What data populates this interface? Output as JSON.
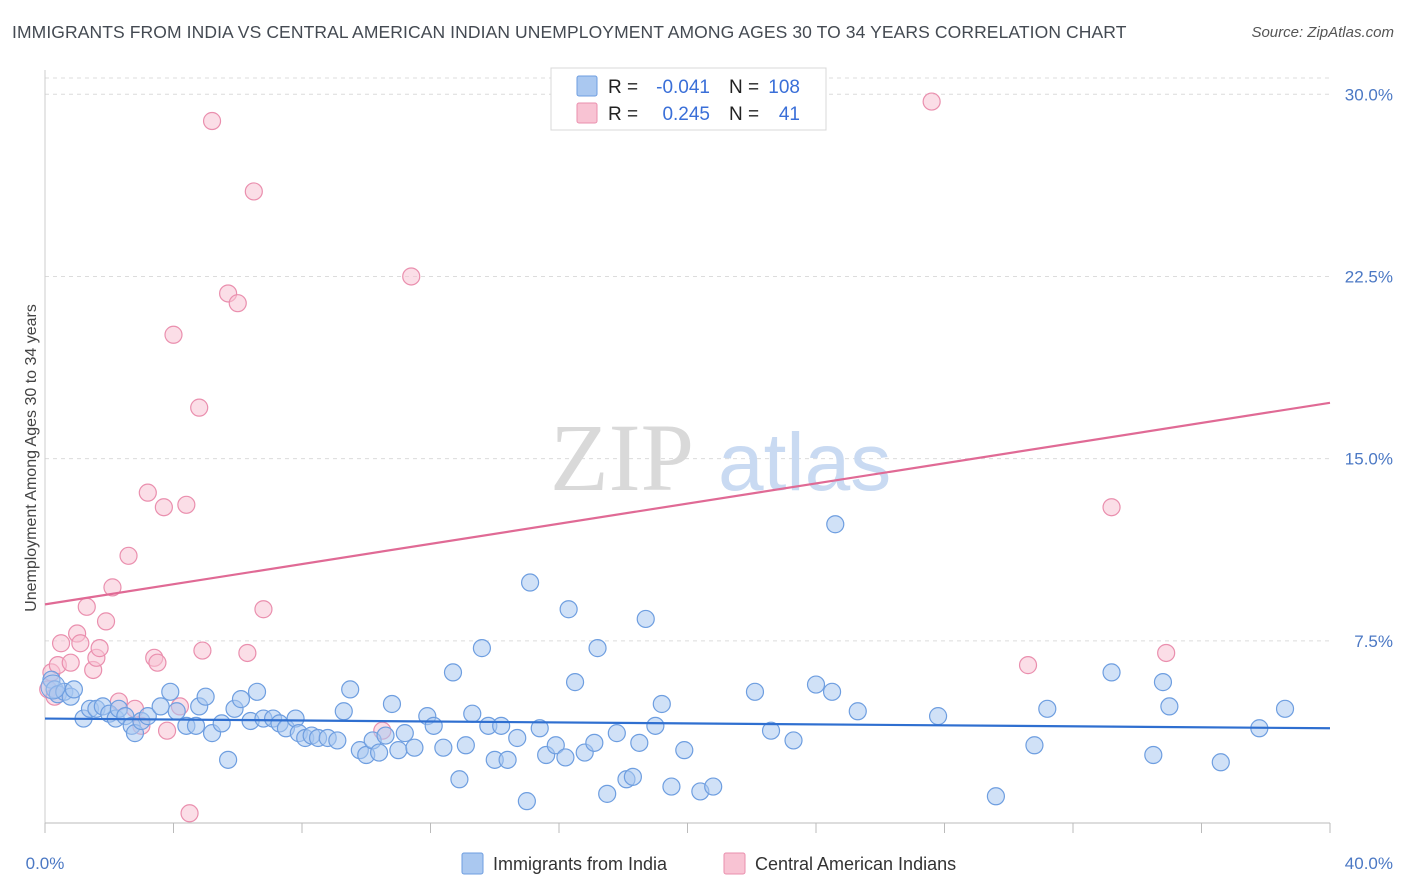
{
  "header": {
    "title": "IMMIGRANTS FROM INDIA VS CENTRAL AMERICAN INDIAN UNEMPLOYMENT AMONG AGES 30 TO 34 YEARS CORRELATION CHART",
    "source": "Source: ZipAtlas.com"
  },
  "watermark": {
    "zip": "ZIP",
    "atlas": "atlas"
  },
  "legend": {
    "r_label": "R =",
    "n_label": "N =",
    "rows": [
      {
        "r": "-0.041",
        "n": "108"
      },
      {
        "r": "0.245",
        "n": "41"
      }
    ]
  },
  "colors": {
    "india_fill": "#aac8f0",
    "india_stroke": "#6e9ee0",
    "india_line": "#2f6fd0",
    "cai_fill": "#f8c3d3",
    "cai_stroke": "#ea8fae",
    "cai_line": "#e06a95"
  },
  "chart_data": {
    "type": "scatter",
    "ylabel": "Unemployment Among Ages 30 to 34 years",
    "xlim": [
      0,
      40
    ],
    "ylim": [
      0,
      31
    ],
    "x_tick_labels": [
      "0.0%",
      "40.0%"
    ],
    "y_ticks": [
      7.5,
      15.0,
      22.5,
      30.0
    ],
    "y_tick_labels": [
      "7.5%",
      "15.0%",
      "22.5%",
      "30.0%"
    ],
    "grid": "horizontal dashed",
    "legend_position": "top-center and bottom",
    "series": [
      {
        "name": "Immigrants from India",
        "trend": [
          [
            0,
            4.3
          ],
          [
            40,
            3.9
          ]
        ],
        "points": [
          [
            0.2,
            5.9
          ],
          [
            0.3,
            5.5
          ],
          [
            0.4,
            5.3
          ],
          [
            0.6,
            5.4
          ],
          [
            0.8,
            5.2
          ],
          [
            0.9,
            5.5
          ],
          [
            1.2,
            4.3
          ],
          [
            1.4,
            4.7
          ],
          [
            1.6,
            4.7
          ],
          [
            1.8,
            4.8
          ],
          [
            2.0,
            4.5
          ],
          [
            2.2,
            4.3
          ],
          [
            2.3,
            4.7
          ],
          [
            2.5,
            4.4
          ],
          [
            2.7,
            4.0
          ],
          [
            2.8,
            3.7
          ],
          [
            3.0,
            4.2
          ],
          [
            3.2,
            4.4
          ],
          [
            3.6,
            4.8
          ],
          [
            3.9,
            5.4
          ],
          [
            4.1,
            4.6
          ],
          [
            4.4,
            4.0
          ],
          [
            4.7,
            4.0
          ],
          [
            4.8,
            4.8
          ],
          [
            5.0,
            5.2
          ],
          [
            5.2,
            3.7
          ],
          [
            5.5,
            4.1
          ],
          [
            5.7,
            2.6
          ],
          [
            5.9,
            4.7
          ],
          [
            6.1,
            5.1
          ],
          [
            6.4,
            4.2
          ],
          [
            6.6,
            5.4
          ],
          [
            6.8,
            4.3
          ],
          [
            7.1,
            4.3
          ],
          [
            7.3,
            4.1
          ],
          [
            7.5,
            3.9
          ],
          [
            7.8,
            4.3
          ],
          [
            7.9,
            3.7
          ],
          [
            8.1,
            3.5
          ],
          [
            8.3,
            3.6
          ],
          [
            8.5,
            3.5
          ],
          [
            8.8,
            3.5
          ],
          [
            9.1,
            3.4
          ],
          [
            9.3,
            4.6
          ],
          [
            9.5,
            5.5
          ],
          [
            9.8,
            3.0
          ],
          [
            10.0,
            2.8
          ],
          [
            10.2,
            3.4
          ],
          [
            10.4,
            2.9
          ],
          [
            10.6,
            3.6
          ],
          [
            10.8,
            4.9
          ],
          [
            11.0,
            3.0
          ],
          [
            11.2,
            3.7
          ],
          [
            11.5,
            3.1
          ],
          [
            11.9,
            4.4
          ],
          [
            12.1,
            4.0
          ],
          [
            12.4,
            3.1
          ],
          [
            12.7,
            6.2
          ],
          [
            12.9,
            1.8
          ],
          [
            13.1,
            3.2
          ],
          [
            13.3,
            4.5
          ],
          [
            13.6,
            7.2
          ],
          [
            13.8,
            4.0
          ],
          [
            14.0,
            2.6
          ],
          [
            14.2,
            4.0
          ],
          [
            14.4,
            2.6
          ],
          [
            14.7,
            3.5
          ],
          [
            15.0,
            0.9
          ],
          [
            15.1,
            9.9
          ],
          [
            15.4,
            3.9
          ],
          [
            15.6,
            2.8
          ],
          [
            15.9,
            3.2
          ],
          [
            16.2,
            2.7
          ],
          [
            16.3,
            8.8
          ],
          [
            16.5,
            5.8
          ],
          [
            16.8,
            2.9
          ],
          [
            17.1,
            3.3
          ],
          [
            17.2,
            7.2
          ],
          [
            17.5,
            1.2
          ],
          [
            17.8,
            3.7
          ],
          [
            18.1,
            1.8
          ],
          [
            18.3,
            1.9
          ],
          [
            18.5,
            3.3
          ],
          [
            18.7,
            8.4
          ],
          [
            19.0,
            4.0
          ],
          [
            19.2,
            4.9
          ],
          [
            19.5,
            1.5
          ],
          [
            19.9,
            3.0
          ],
          [
            20.4,
            1.3
          ],
          [
            20.8,
            1.5
          ],
          [
            22.1,
            5.4
          ],
          [
            22.6,
            3.8
          ],
          [
            23.3,
            3.4
          ],
          [
            24.0,
            5.7
          ],
          [
            24.5,
            5.4
          ],
          [
            24.6,
            12.3
          ],
          [
            25.3,
            4.6
          ],
          [
            27.8,
            4.4
          ],
          [
            29.6,
            1.1
          ],
          [
            30.8,
            3.2
          ],
          [
            31.2,
            4.7
          ],
          [
            33.2,
            6.2
          ],
          [
            34.5,
            2.8
          ],
          [
            34.8,
            5.8
          ],
          [
            35.0,
            4.8
          ],
          [
            36.6,
            2.5
          ],
          [
            37.8,
            3.9
          ],
          [
            38.6,
            4.7
          ]
        ]
      },
      {
        "name": "Central American Indians",
        "trend": [
          [
            0,
            9.0
          ],
          [
            40,
            17.3
          ]
        ],
        "points": [
          [
            0.1,
            5.5
          ],
          [
            0.2,
            6.2
          ],
          [
            0.4,
            6.5
          ],
          [
            0.5,
            7.4
          ],
          [
            0.8,
            6.6
          ],
          [
            1.0,
            7.8
          ],
          [
            1.1,
            7.4
          ],
          [
            1.3,
            8.9
          ],
          [
            1.5,
            6.3
          ],
          [
            1.6,
            6.8
          ],
          [
            1.7,
            7.2
          ],
          [
            1.9,
            8.3
          ],
          [
            2.1,
            9.7
          ],
          [
            2.3,
            5.0
          ],
          [
            2.6,
            11.0
          ],
          [
            2.8,
            4.7
          ],
          [
            3.0,
            4.0
          ],
          [
            3.2,
            13.6
          ],
          [
            3.4,
            6.8
          ],
          [
            3.5,
            6.6
          ],
          [
            3.7,
            13.0
          ],
          [
            3.8,
            3.8
          ],
          [
            4.0,
            20.1
          ],
          [
            4.2,
            4.8
          ],
          [
            4.4,
            13.1
          ],
          [
            4.5,
            0.4
          ],
          [
            4.8,
            17.1
          ],
          [
            4.9,
            7.1
          ],
          [
            5.2,
            28.9
          ],
          [
            5.7,
            21.8
          ],
          [
            6.0,
            21.4
          ],
          [
            6.3,
            7.0
          ],
          [
            6.5,
            26.0
          ],
          [
            6.8,
            8.8
          ],
          [
            10.5,
            3.8
          ],
          [
            11.4,
            22.5
          ],
          [
            27.6,
            29.7
          ],
          [
            30.6,
            6.5
          ],
          [
            33.2,
            13.0
          ],
          [
            34.9,
            7.0
          ],
          [
            0.3,
            5.2
          ]
        ]
      }
    ]
  },
  "bottom_legend": [
    {
      "label": "Immigrants from India"
    },
    {
      "label": "Central American Indians"
    }
  ]
}
